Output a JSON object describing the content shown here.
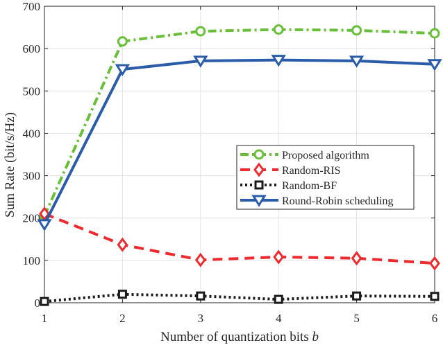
{
  "chart_data": {
    "type": "line",
    "title": "",
    "xlabel": "Number of quantization bits b",
    "ylabel": "Sum Rate (bit/s/Hz)",
    "x": [
      1,
      2,
      3,
      4,
      5,
      6
    ],
    "xlim": [
      1,
      6
    ],
    "ylim": [
      0,
      700
    ],
    "yticks": [
      0,
      100,
      200,
      300,
      400,
      500,
      600,
      700
    ],
    "xticks": [
      1,
      2,
      3,
      4,
      5,
      6
    ],
    "grid": true,
    "legend_position": "center-right",
    "series": [
      {
        "name": "Proposed algorithm",
        "color": "#6abf3a",
        "dash": "dash-dot",
        "marker": "circle",
        "values": [
          205,
          617,
          641,
          645,
          643,
          636
        ]
      },
      {
        "name": "Random-RIS",
        "color": "#ee2a2e",
        "dash": "dashed",
        "marker": "diamond",
        "values": [
          210,
          137,
          101,
          108,
          105,
          93
        ]
      },
      {
        "name": "Random-BF",
        "color": "#1a1a1a",
        "dash": "dotted",
        "marker": "square",
        "values": [
          3,
          20,
          16,
          8,
          16,
          15
        ]
      },
      {
        "name": "Round-Robin scheduling",
        "color": "#2a5caa",
        "dash": "solid",
        "marker": "triangle-down",
        "values": [
          185,
          551,
          571,
          573,
          571,
          563
        ]
      }
    ]
  }
}
